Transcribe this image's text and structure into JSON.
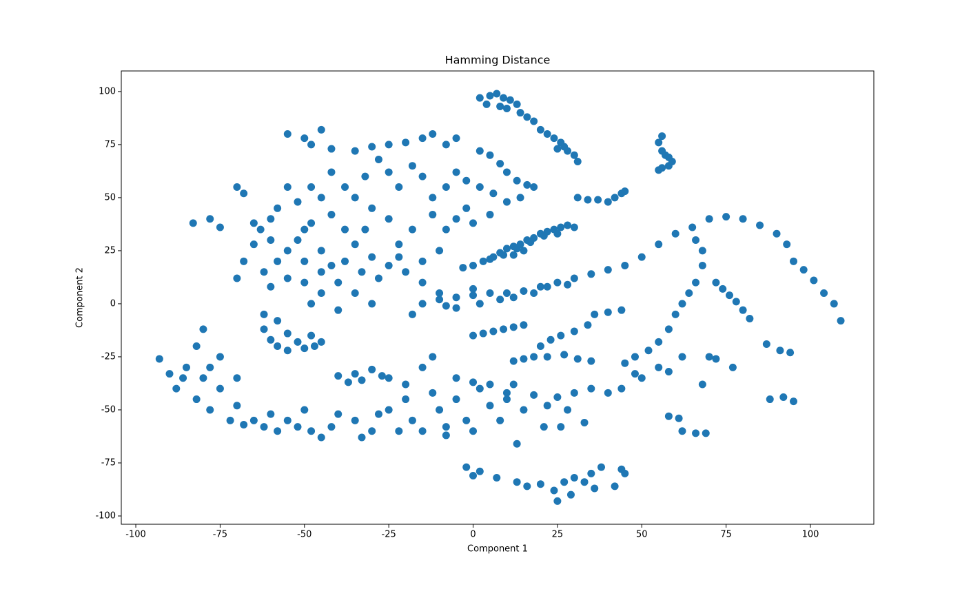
{
  "chart_data": {
    "type": "scatter",
    "title": "Hamming Distance",
    "x_label": "Component 1",
    "y_label": "Component 2",
    "color": "#1f77b4",
    "xlim": [
      -104.3,
      118.8
    ],
    "ylim": [
      -103.9,
      109.7
    ],
    "xticks": [
      -100,
      -75,
      -50,
      -25,
      0,
      25,
      50,
      75,
      100
    ],
    "yticks": [
      -100,
      -75,
      -50,
      -25,
      0,
      25,
      50,
      75,
      100
    ],
    "grid": false,
    "x": [
      2,
      5,
      7,
      9,
      11,
      13,
      4,
      8,
      10,
      14,
      16,
      18,
      20,
      22,
      24,
      26,
      27,
      28,
      30,
      31,
      25,
      31,
      34,
      37,
      40,
      42,
      44,
      45,
      56,
      55,
      56,
      57,
      55,
      58,
      59,
      58,
      56,
      -3,
      0,
      3,
      6,
      8,
      10,
      12,
      14,
      16,
      18,
      20,
      22,
      24,
      26,
      28,
      30,
      5,
      9,
      13,
      17,
      21,
      25,
      12,
      15,
      -15,
      -10,
      -5,
      0,
      5,
      10,
      15,
      20,
      25,
      30,
      35,
      40,
      45,
      50,
      55,
      60,
      65,
      70,
      75,
      80,
      85,
      90,
      93,
      95,
      98,
      101,
      104,
      107,
      109,
      -18,
      -8,
      2,
      8,
      12,
      18,
      22,
      28,
      -10,
      0,
      -5,
      -55,
      -50,
      -45,
      -48,
      -42,
      -35,
      -30,
      -25,
      -20,
      -15,
      -12,
      -8,
      -5,
      2,
      5,
      8,
      10,
      13,
      16,
      18,
      14,
      10,
      6,
      2,
      -2,
      -5,
      -8,
      -12,
      -15,
      -18,
      -22,
      -25,
      -28,
      -32,
      -35,
      -38,
      -42,
      -45,
      -48,
      -52,
      -55,
      -58,
      -60,
      -63,
      -65,
      -68,
      -70,
      -60,
      -55,
      -50,
      -45,
      -40,
      -35,
      -30,
      -40,
      -45,
      -50,
      -55,
      -60,
      -62,
      -58,
      -52,
      -48,
      -42,
      -38,
      -35,
      -30,
      -25,
      -20,
      -15,
      -10,
      -8,
      -5,
      0,
      5,
      -2,
      -12,
      -18,
      -22,
      -25,
      -30,
      -32,
      -28,
      -38,
      -45,
      -50,
      -65,
      -70,
      -68,
      -83,
      -78,
      -75,
      -22,
      -15,
      -33,
      -48,
      -42,
      -62,
      -60,
      -58,
      -55,
      -52,
      -50,
      -47,
      -45,
      -58,
      -55,
      -48,
      -62,
      -93,
      -90,
      -88,
      -85,
      -82,
      -80,
      -82,
      -78,
      -75,
      -72,
      -70,
      -68,
      -65,
      -62,
      -60,
      -58,
      -55,
      -52,
      -50,
      -48,
      -45,
      -42,
      -40,
      -35,
      -30,
      -33,
      -28,
      -78,
      -75,
      -70,
      -86,
      -80,
      -40,
      -35,
      -30,
      -27,
      -25,
      -33,
      -37,
      -25,
      -20,
      -18,
      -15,
      -12,
      -10,
      -8,
      -5,
      -2,
      0,
      2,
      5,
      8,
      10,
      12,
      15,
      -15,
      -12,
      -20,
      -22,
      18,
      22,
      25,
      28,
      -5,
      0,
      5,
      10,
      -8,
      0,
      3,
      6,
      9,
      12,
      15,
      20,
      23,
      26,
      30,
      34,
      36,
      40,
      44,
      12,
      15,
      18,
      22,
      27,
      31,
      35,
      30,
      35,
      40,
      44,
      45,
      48,
      52,
      55,
      58,
      60,
      62,
      64,
      66,
      68,
      68,
      66,
      62,
      55,
      50,
      48,
      58,
      72,
      74,
      76,
      78,
      80,
      82,
      70,
      72,
      77,
      87,
      91,
      94,
      88,
      92,
      95,
      68,
      58,
      61,
      62,
      66,
      69,
      -2,
      2,
      0,
      13,
      16,
      20,
      24,
      27,
      30,
      33,
      35,
      38,
      42,
      44,
      45,
      25,
      29,
      36,
      7,
      13,
      33,
      21,
      26
    ],
    "values": [
      97,
      98,
      99,
      97,
      96,
      94,
      94,
      93,
      92,
      90,
      88,
      86,
      82,
      80,
      78,
      76,
      74,
      72,
      70,
      67,
      73,
      50,
      49,
      49,
      48,
      50,
      52,
      53,
      79,
      76,
      72,
      70,
      63,
      65,
      67,
      69,
      64,
      17,
      18,
      20,
      22,
      24,
      26,
      27,
      28,
      30,
      31,
      33,
      34,
      35,
      36,
      37,
      36,
      21,
      23,
      26,
      29,
      32,
      33,
      23,
      25,
      0,
      2,
      3,
      4,
      5,
      5,
      6,
      8,
      10,
      12,
      14,
      16,
      18,
      22,
      28,
      33,
      36,
      40,
      41,
      40,
      37,
      33,
      28,
      20,
      16,
      11,
      5,
      0,
      -8,
      -5,
      -1,
      0,
      2,
      3,
      5,
      8,
      9,
      5,
      7,
      -2,
      80,
      78,
      82,
      75,
      73,
      72,
      74,
      75,
      76,
      78,
      80,
      75,
      78,
      72,
      70,
      66,
      62,
      58,
      56,
      55,
      50,
      48,
      52,
      55,
      58,
      62,
      55,
      50,
      60,
      65,
      55,
      62,
      68,
      60,
      50,
      55,
      62,
      50,
      55,
      48,
      55,
      45,
      40,
      35,
      28,
      20,
      12,
      30,
      25,
      20,
      15,
      10,
      5,
      0,
      -3,
      5,
      10,
      12,
      8,
      15,
      20,
      30,
      38,
      42,
      35,
      28,
      22,
      18,
      15,
      20,
      25,
      35,
      40,
      38,
      42,
      45,
      42,
      35,
      28,
      40,
      45,
      35,
      12,
      20,
      25,
      35,
      38,
      55,
      52,
      38,
      40,
      36,
      22,
      10,
      15,
      0,
      18,
      -12,
      -17,
      -20,
      -22,
      -18,
      -21,
      -20,
      -18,
      -8,
      -14,
      -15,
      -5,
      -26,
      -33,
      -40,
      -30,
      -20,
      -12,
      -45,
      -50,
      -40,
      -55,
      -48,
      -57,
      -55,
      -58,
      -52,
      -60,
      -55,
      -58,
      -50,
      -60,
      -63,
      -58,
      -52,
      -55,
      -60,
      -63,
      -52,
      -30,
      -25,
      -35,
      -35,
      -35,
      -34,
      -33,
      -31,
      -34,
      -35,
      -36,
      -37,
      -50,
      -45,
      -55,
      -60,
      -42,
      -50,
      -58,
      -45,
      -55,
      -60,
      -40,
      -48,
      -55,
      -45,
      -38,
      -50,
      -30,
      -25,
      -38,
      -60,
      -43,
      -48,
      -44,
      -50,
      -35,
      -37,
      -38,
      -42,
      -62,
      -15,
      -14,
      -13,
      -12,
      -11,
      -10,
      -20,
      -17,
      -15,
      -13,
      -10,
      -5,
      -4,
      -3,
      -27,
      -26,
      -25,
      -25,
      -24,
      -26,
      -27,
      -42,
      -40,
      -42,
      -40,
      -28,
      -25,
      -22,
      -18,
      -12,
      -5,
      0,
      5,
      10,
      18,
      25,
      30,
      -25,
      -30,
      -35,
      -33,
      -32,
      10,
      7,
      4,
      1,
      -3,
      -7,
      -25,
      -26,
      -30,
      -19,
      -22,
      -23,
      -45,
      -44,
      -46,
      -38,
      -53,
      -54,
      -60,
      -61,
      -61,
      -77,
      -79,
      -81,
      -84,
      -86,
      -85,
      -88,
      -84,
      -82,
      -84,
      -80,
      -77,
      -86,
      -78,
      -80,
      -93,
      -90,
      -87,
      -82,
      -66,
      -56,
      -58,
      -58
    ]
  }
}
